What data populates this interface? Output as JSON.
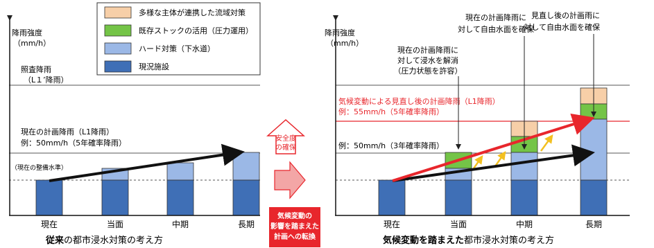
{
  "legend": {
    "items": [
      {
        "label": "多様な主体が連携した流域対策",
        "color": "#f7cfa8"
      },
      {
        "label": "既存ストックの活用（圧力運用）",
        "color": "#74c447"
      },
      {
        "label": "ハード対策（下水道）",
        "color": "#9bb8e6"
      },
      {
        "label": "現況施設",
        "color": "#3f6fb6"
      }
    ]
  },
  "left_chart": {
    "y_axis_label_line1": "降雨強度",
    "y_axis_label_line2": "（mm/h）",
    "illumination_label_line1": "照査降雨",
    "illumination_label_line2": "（L１’降雨）",
    "plan_label_line1": "現在の計画降雨（L1降雨）",
    "plan_label_line2": "例：50mm/h（5年確率降雨）",
    "current_level_label": "（現在の整備水準）",
    "categories": [
      "現在",
      "当面",
      "中期",
      "長期"
    ],
    "caption_bold": "従来",
    "caption_rest": "の都市浸水対策の考え方"
  },
  "middle": {
    "safety_line1": "安全度",
    "safety_line2": "の確保",
    "transition_line1": "気候変動の",
    "transition_line2": "影響を踏まえた",
    "transition_line3": "計画への転換"
  },
  "right_chart": {
    "y_axis_label_line1": "降雨強度",
    "y_axis_label_line2": "（mm/h）",
    "climate_label_line1": "気候変動による見直し後の計画降雨（L1降雨）",
    "climate_label_line2": "例：55mm/h（5年確率降雨）",
    "plan_label": "例：50mm/h（3年確率降雨）",
    "note_pressure_line1": "現在の計画降雨に",
    "note_pressure_line2": "対して浸水を解消",
    "note_pressure_line3": "（圧力状態を許容）",
    "note_free_current_line1": "現在の計画降雨に",
    "note_free_current_line2": "対して自由水面を確保",
    "note_free_revised_line1": "見直し後の計画雨に",
    "note_free_revised_line2": "対して自由水面を確保",
    "categories": [
      "現在",
      "当面",
      "中期",
      "長期"
    ],
    "caption_bold": "気候変動を踏まえた",
    "caption_rest": "都市浸水対策の考え方"
  },
  "colors": {
    "existing": "#3f6fb6",
    "hard": "#9bb8e6",
    "stock": "#74c447",
    "basin": "#f7cfa8",
    "red": "#e8262c",
    "yellow": "#f3c021"
  }
}
